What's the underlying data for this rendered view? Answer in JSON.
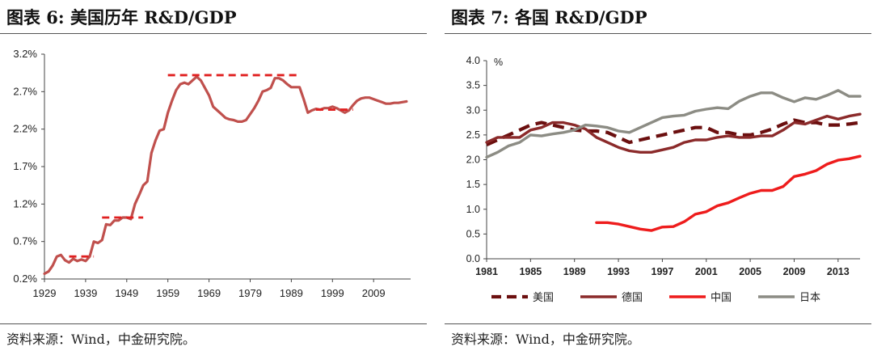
{
  "chart_data": [
    {
      "type": "line",
      "title": "图表 6: 美国历年 R&D/GDP",
      "source": "资料来源：Wind，中金研究院。",
      "y_ticks": [
        "3.2%",
        "2.7%",
        "2.2%",
        "1.7%",
        "1.2%",
        "0.7%",
        "0.2%"
      ],
      "x_ticks": [
        "1929",
        "1939",
        "1949",
        "1959",
        "1969",
        "1979",
        "1989",
        "1999",
        "2009"
      ],
      "xlim": [
        1929,
        2018
      ],
      "ylim": [
        0.2,
        3.2
      ],
      "grid": false,
      "line_color": "#c0504d",
      "dash_color": "#e02020",
      "series": [
        {
          "x": [
            1929,
            1930,
            1931,
            1932,
            1933,
            1934,
            1935,
            1936,
            1937,
            1938,
            1939,
            1940,
            1941,
            1942,
            1943,
            1944,
            1945,
            1946,
            1947,
            1948,
            1949,
            1950,
            1951,
            1952,
            1953,
            1954,
            1955,
            1956,
            1957,
            1958,
            1959,
            1960,
            1961,
            1962,
            1963,
            1964,
            1965,
            1966,
            1967,
            1968,
            1969,
            1970,
            1971,
            1972,
            1973,
            1974,
            1975,
            1976,
            1977,
            1978,
            1979,
            1980,
            1981,
            1982,
            1983,
            1984,
            1985,
            1986,
            1987,
            1988,
            1989,
            1990,
            1991,
            1992,
            1993,
            1994,
            1995,
            1996,
            1997,
            1998,
            1999,
            2000,
            2001,
            2002,
            2003,
            2004,
            2005,
            2006,
            2007,
            2008,
            2009,
            2010,
            2011,
            2012,
            2013,
            2014,
            2015,
            2016,
            2017
          ],
          "y": [
            0.27,
            0.3,
            0.38,
            0.5,
            0.52,
            0.45,
            0.42,
            0.47,
            0.44,
            0.46,
            0.44,
            0.5,
            0.7,
            0.68,
            0.72,
            0.93,
            0.92,
            0.98,
            0.98,
            1.02,
            1.02,
            1.0,
            1.2,
            1.32,
            1.45,
            1.5,
            1.88,
            2.05,
            2.18,
            2.2,
            2.42,
            2.58,
            2.72,
            2.8,
            2.82,
            2.8,
            2.85,
            2.9,
            2.85,
            2.75,
            2.65,
            2.5,
            2.45,
            2.4,
            2.35,
            2.33,
            2.32,
            2.3,
            2.3,
            2.32,
            2.4,
            2.48,
            2.58,
            2.7,
            2.72,
            2.75,
            2.88,
            2.88,
            2.85,
            2.8,
            2.76,
            2.76,
            2.76,
            2.6,
            2.42,
            2.45,
            2.47,
            2.46,
            2.48,
            2.48,
            2.5,
            2.48,
            2.45,
            2.42,
            2.45,
            2.52,
            2.58,
            2.61,
            2.62,
            2.62,
            2.6,
            2.58,
            2.56,
            2.54,
            2.54,
            2.55,
            2.55,
            2.56,
            2.57
          ]
        }
      ],
      "reference_segments": [
        {
          "x": [
            1935,
            1941
          ],
          "y": 0.5
        },
        {
          "x": [
            1943,
            1953
          ],
          "y": 1.02
        },
        {
          "x": [
            1959,
            1991
          ],
          "y": 2.92
        },
        {
          "x": [
            1995,
            2004
          ],
          "y": 2.46
        }
      ]
    },
    {
      "type": "line",
      "title": "图表 7: 各国 R&D/GDP",
      "source": "资料来源：Wind，中金研究院。",
      "unit": "%",
      "y_ticks": [
        "4.0",
        "3.5",
        "3.0",
        "2.5",
        "2.0",
        "1.5",
        "1.0",
        "0.5",
        "0.0"
      ],
      "x_ticks": [
        "1981",
        "1985",
        "1989",
        "1993",
        "1997",
        "2001",
        "2005",
        "2009",
        "2013"
      ],
      "xlim": [
        1981,
        2015
      ],
      "ylim": [
        0.0,
        4.0
      ],
      "grid": false,
      "legend": "bottom",
      "series": [
        {
          "name": "美国",
          "color": "#6b0f0f",
          "dash": true,
          "x": [
            1981,
            1982,
            1983,
            1984,
            1985,
            1986,
            1987,
            1988,
            1989,
            1990,
            1991,
            1992,
            1993,
            1994,
            1995,
            1996,
            1997,
            1998,
            1999,
            2000,
            2001,
            2002,
            2003,
            2004,
            2005,
            2006,
            2007,
            2008,
            2009,
            2010,
            2011,
            2012,
            2013,
            2014,
            2015
          ],
          "y": [
            2.3,
            2.4,
            2.5,
            2.6,
            2.7,
            2.75,
            2.7,
            2.65,
            2.6,
            2.58,
            2.58,
            2.55,
            2.45,
            2.35,
            2.4,
            2.45,
            2.5,
            2.55,
            2.6,
            2.65,
            2.65,
            2.55,
            2.55,
            2.5,
            2.5,
            2.55,
            2.62,
            2.72,
            2.8,
            2.75,
            2.75,
            2.7,
            2.7,
            2.72,
            2.75
          ]
        },
        {
          "name": "德国",
          "color": "#8b2a2a",
          "dash": false,
          "x": [
            1981,
            1982,
            1983,
            1984,
            1985,
            1986,
            1987,
            1988,
            1989,
            1990,
            1991,
            1992,
            1993,
            1994,
            1995,
            1996,
            1997,
            1998,
            1999,
            2000,
            2001,
            2002,
            2003,
            2004,
            2005,
            2006,
            2007,
            2008,
            2009,
            2010,
            2011,
            2012,
            2013,
            2014,
            2015
          ],
          "y": [
            2.35,
            2.45,
            2.45,
            2.45,
            2.6,
            2.65,
            2.75,
            2.75,
            2.7,
            2.62,
            2.45,
            2.35,
            2.25,
            2.18,
            2.15,
            2.15,
            2.2,
            2.25,
            2.35,
            2.4,
            2.4,
            2.45,
            2.48,
            2.45,
            2.45,
            2.48,
            2.48,
            2.6,
            2.75,
            2.72,
            2.8,
            2.88,
            2.82,
            2.88,
            2.92
          ]
        },
        {
          "name": "中国",
          "color": "#ee1c1c",
          "dash": false,
          "x": [
            1991,
            1992,
            1993,
            1994,
            1995,
            1996,
            1997,
            1998,
            1999,
            2000,
            2001,
            2002,
            2003,
            2004,
            2005,
            2006,
            2007,
            2008,
            2009,
            2010,
            2011,
            2012,
            2013,
            2014,
            2015
          ],
          "y": [
            0.73,
            0.73,
            0.7,
            0.65,
            0.6,
            0.57,
            0.64,
            0.65,
            0.75,
            0.9,
            0.95,
            1.07,
            1.13,
            1.23,
            1.32,
            1.38,
            1.38,
            1.46,
            1.66,
            1.71,
            1.78,
            1.91,
            1.99,
            2.02,
            2.07
          ]
        },
        {
          "name": "日本",
          "color": "#8c8c84",
          "dash": false,
          "x": [
            1981,
            1982,
            1983,
            1984,
            1985,
            1986,
            1987,
            1988,
            1989,
            1990,
            1991,
            1992,
            1993,
            1994,
            1995,
            1996,
            1997,
            1998,
            1999,
            2000,
            2001,
            2002,
            2003,
            2004,
            2005,
            2006,
            2007,
            2008,
            2009,
            2010,
            2011,
            2012,
            2013,
            2014,
            2015
          ],
          "y": [
            2.05,
            2.15,
            2.28,
            2.35,
            2.5,
            2.48,
            2.52,
            2.55,
            2.6,
            2.7,
            2.68,
            2.65,
            2.58,
            2.55,
            2.65,
            2.75,
            2.85,
            2.88,
            2.9,
            2.98,
            3.02,
            3.05,
            3.03,
            3.18,
            3.28,
            3.35,
            3.35,
            3.25,
            3.17,
            3.25,
            3.22,
            3.3,
            3.4,
            3.28,
            3.28
          ]
        }
      ]
    }
  ]
}
